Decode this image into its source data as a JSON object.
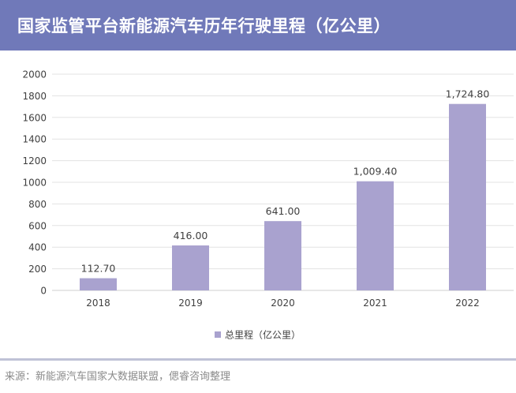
{
  "header": {
    "title": "国家监管平台新能源汽车历年行驶里程（亿公里）"
  },
  "chart_data": {
    "type": "bar",
    "categories": [
      "2018",
      "2019",
      "2020",
      "2021",
      "2022"
    ],
    "series": [
      {
        "name": "总里程（亿公里）",
        "values": [
          112.7,
          416.0,
          641.0,
          1009.4,
          1724.8
        ],
        "labels": [
          "112.70",
          "416.00",
          "641.00",
          "1,009.40",
          "1,724.80"
        ],
        "color": "#a9a2cf"
      }
    ],
    "y_ticks": [
      0,
      200,
      400,
      600,
      800,
      1000,
      1200,
      1400,
      1600,
      1800,
      2000
    ],
    "ylim": [
      0,
      2000
    ],
    "grid": true,
    "legend": "bottom-center"
  },
  "footer": {
    "source": "来源：新能源汽车国家大数据联盟，偲睿咨询整理"
  },
  "colors": {
    "header_bg": "#7079b9",
    "bar": "#a9a2cf",
    "grid": "#e3e3e3",
    "axis_text": "#404040"
  }
}
